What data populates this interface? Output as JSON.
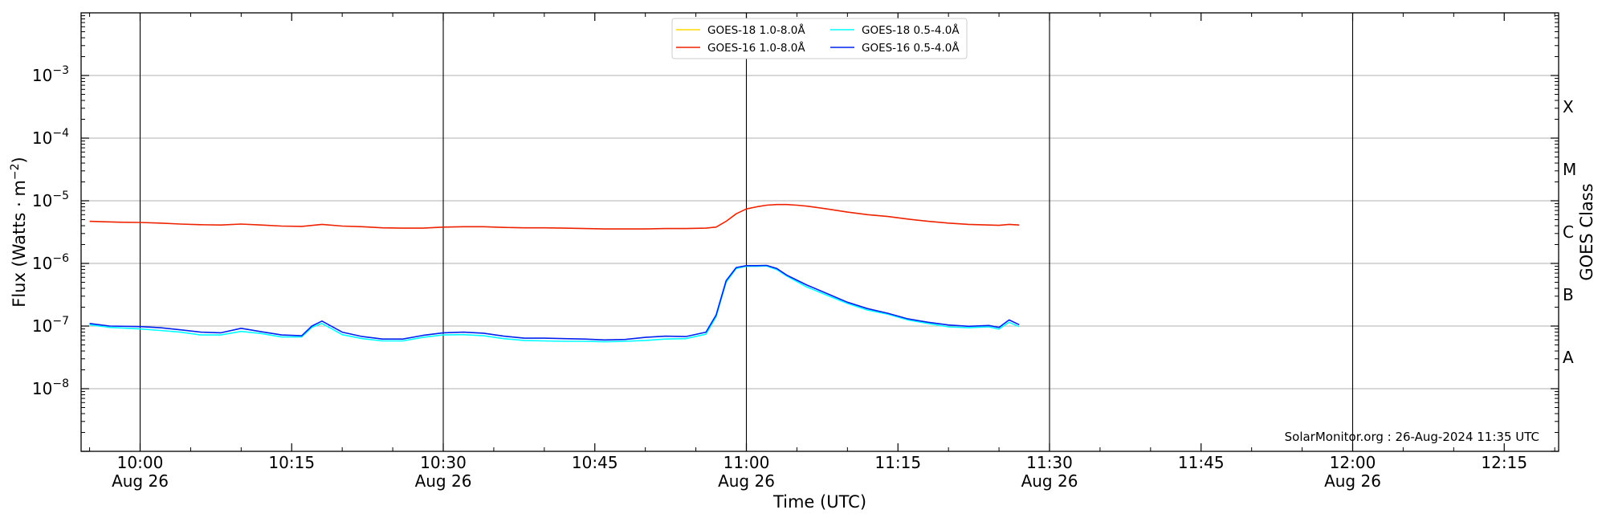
{
  "chart_data": {
    "type": "line",
    "xlabel": "Time (UTC)",
    "ylabel": "Flux (Watts · m",
    "ylabel_exponent": "−2",
    "ylabel_close": ")",
    "right_axis_label": "GOES Class",
    "yscale": "log",
    "ylim": [
      1e-09,
      0.01
    ],
    "xlim": [
      "2024-08-26 09:55",
      "2024-08-26 12:20"
    ],
    "grid": "horizontal at decades, vertical at half-hours",
    "legend_position": "top-center",
    "x_ticks": [
      {
        "t": "10:00",
        "label": "10:00",
        "sublabel": "Aug 26"
      },
      {
        "t": "10:15",
        "label": "10:15",
        "sublabel": ""
      },
      {
        "t": "10:30",
        "label": "10:30",
        "sublabel": "Aug 26"
      },
      {
        "t": "10:45",
        "label": "10:45",
        "sublabel": ""
      },
      {
        "t": "11:00",
        "label": "11:00",
        "sublabel": "Aug 26"
      },
      {
        "t": "11:15",
        "label": "11:15",
        "sublabel": ""
      },
      {
        "t": "11:30",
        "label": "11:30",
        "sublabel": "Aug 26"
      },
      {
        "t": "11:45",
        "label": "11:45",
        "sublabel": ""
      },
      {
        "t": "12:00",
        "label": "12:00",
        "sublabel": "Aug 26"
      },
      {
        "t": "12:15",
        "label": "12:15",
        "sublabel": ""
      }
    ],
    "y_ticks": [
      {
        "exp": -8,
        "label": "10",
        "sup": "−8"
      },
      {
        "exp": -7,
        "label": "10",
        "sup": "−7"
      },
      {
        "exp": -6,
        "label": "10",
        "sup": "−6"
      },
      {
        "exp": -5,
        "label": "10",
        "sup": "−5"
      },
      {
        "exp": -4,
        "label": "10",
        "sup": "−4"
      },
      {
        "exp": -3,
        "label": "10",
        "sup": "−3"
      }
    ],
    "goes_classes": [
      {
        "label": "A",
        "exp_mid": -7.5
      },
      {
        "label": "B",
        "exp_mid": -6.5
      },
      {
        "label": "C",
        "exp_mid": -5.5
      },
      {
        "label": "M",
        "exp_mid": -4.5
      },
      {
        "label": "X",
        "exp_mid": -3.5
      }
    ],
    "series": [
      {
        "name": "GOES-18 1.0-8.0Å",
        "color": "#ffd700",
        "x": [],
        "y": []
      },
      {
        "name": "GOES-18 0.5-4.0Å",
        "color": "#00ffff",
        "x": [
          "09:55",
          "09:57",
          "10:00",
          "10:02",
          "10:04",
          "10:06",
          "10:08",
          "10:10",
          "10:12",
          "10:14",
          "10:16",
          "10:17",
          "10:18",
          "10:19",
          "10:20",
          "10:22",
          "10:24",
          "10:26",
          "10:28",
          "10:30",
          "10:32",
          "10:34",
          "10:36",
          "10:38",
          "10:40",
          "10:42",
          "10:44",
          "10:46",
          "10:48",
          "10:50",
          "10:52",
          "10:54",
          "10:56",
          "10:57",
          "10:58",
          "10:59",
          "11:00",
          "11:01",
          "11:02",
          "11:03",
          "11:04",
          "11:06",
          "11:08",
          "11:10",
          "11:12",
          "11:14",
          "11:16",
          "11:18",
          "11:20",
          "11:22",
          "11:24",
          "11:25",
          "11:26",
          "11:27"
        ],
        "y": [
          1.05e-07,
          9.5e-08,
          9e-08,
          8.5e-08,
          8e-08,
          7.2e-08,
          7.2e-08,
          8.2e-08,
          7.6e-08,
          6.7e-08,
          6.7e-08,
          9.5e-08,
          1.1e-07,
          9e-08,
          7.3e-08,
          6.3e-08,
          5.8e-08,
          5.8e-08,
          6.6e-08,
          7.2e-08,
          7.3e-08,
          7e-08,
          6.3e-08,
          5.9e-08,
          5.8e-08,
          5.7e-08,
          5.7e-08,
          5.6e-08,
          5.7e-08,
          5.9e-08,
          6.2e-08,
          6.3e-08,
          7.4e-08,
          1.4e-07,
          5e-07,
          8.3e-07,
          9e-07,
          9e-07,
          9.1e-07,
          8e-07,
          6.3e-07,
          4.2e-07,
          3.1e-07,
          2.3e-07,
          1.8e-07,
          1.55e-07,
          1.25e-07,
          1.1e-07,
          9.7e-08,
          9.4e-08,
          9.7e-08,
          8.9e-08,
          1.15e-07,
          9.8e-08
        ]
      },
      {
        "name": "GOES-16 1.0-8.0Å",
        "color": "#ee2200",
        "x": [
          "09:55",
          "09:58",
          "10:00",
          "10:02",
          "10:04",
          "10:06",
          "10:08",
          "10:10",
          "10:12",
          "10:14",
          "10:16",
          "10:18",
          "10:20",
          "10:22",
          "10:24",
          "10:26",
          "10:28",
          "10:30",
          "10:32",
          "10:34",
          "10:36",
          "10:38",
          "10:40",
          "10:42",
          "10:44",
          "10:46",
          "10:48",
          "10:50",
          "10:52",
          "10:54",
          "10:56",
          "10:57",
          "10:58",
          "10:59",
          "11:00",
          "11:01",
          "11:02",
          "11:03",
          "11:04",
          "11:05",
          "11:06",
          "11:08",
          "11:10",
          "11:12",
          "11:14",
          "11:16",
          "11:18",
          "11:20",
          "11:22",
          "11:24",
          "11:25",
          "11:26",
          "11:27"
        ],
        "y": [
          4.7e-06,
          4.55e-06,
          4.5e-06,
          4.4e-06,
          4.25e-06,
          4.15e-06,
          4.1e-06,
          4.25e-06,
          4.1e-06,
          3.95e-06,
          3.9e-06,
          4.2e-06,
          3.95e-06,
          3.85e-06,
          3.7e-06,
          3.65e-06,
          3.65e-06,
          3.8e-06,
          3.85e-06,
          3.85e-06,
          3.75e-06,
          3.7e-06,
          3.7e-06,
          3.65e-06,
          3.6e-06,
          3.55e-06,
          3.55e-06,
          3.55e-06,
          3.6e-06,
          3.6e-06,
          3.65e-06,
          3.8e-06,
          4.7e-06,
          6.2e-06,
          7.4e-06,
          8e-06,
          8.5e-06,
          8.7e-06,
          8.7e-06,
          8.5e-06,
          8.2e-06,
          7.4e-06,
          6.6e-06,
          6e-06,
          5.6e-06,
          5.1e-06,
          4.7e-06,
          4.4e-06,
          4.2e-06,
          4.1e-06,
          4.05e-06,
          4.2e-06,
          4.1e-06
        ]
      },
      {
        "name": "GOES-16 0.5-4.0Å",
        "color": "#0022ee",
        "x": [
          "09:55",
          "09:57",
          "10:00",
          "10:02",
          "10:04",
          "10:06",
          "10:08",
          "10:10",
          "10:12",
          "10:14",
          "10:16",
          "10:17",
          "10:18",
          "10:19",
          "10:20",
          "10:22",
          "10:24",
          "10:26",
          "10:28",
          "10:30",
          "10:32",
          "10:34",
          "10:36",
          "10:38",
          "10:40",
          "10:42",
          "10:44",
          "10:46",
          "10:48",
          "10:50",
          "10:52",
          "10:54",
          "10:56",
          "10:57",
          "10:58",
          "10:59",
          "11:00",
          "11:01",
          "11:02",
          "11:03",
          "11:04",
          "11:06",
          "11:08",
          "11:10",
          "11:12",
          "11:14",
          "11:16",
          "11:18",
          "11:20",
          "11:22",
          "11:24",
          "11:25",
          "11:26",
          "11:27"
        ],
        "y": [
          1.1e-07,
          1e-07,
          9.8e-08,
          9.4e-08,
          8.7e-08,
          8e-08,
          7.8e-08,
          9.2e-08,
          8.1e-08,
          7.2e-08,
          7e-08,
          1e-07,
          1.2e-07,
          9.8e-08,
          8e-08,
          6.8e-08,
          6.2e-08,
          6.2e-08,
          7.1e-08,
          7.8e-08,
          8e-08,
          7.7e-08,
          6.9e-08,
          6.4e-08,
          6.4e-08,
          6.3e-08,
          6.2e-08,
          6e-08,
          6.1e-08,
          6.6e-08,
          6.9e-08,
          6.8e-08,
          8e-08,
          1.5e-07,
          5.3e-07,
          8.6e-07,
          9.2e-07,
          9.2e-07,
          9.3e-07,
          8.3e-07,
          6.5e-07,
          4.5e-07,
          3.3e-07,
          2.4e-07,
          1.9e-07,
          1.6e-07,
          1.3e-07,
          1.15e-07,
          1.04e-07,
          9.9e-08,
          1.02e-07,
          9.5e-08,
          1.25e-07,
          1.05e-07
        ]
      }
    ],
    "annotation": "SolarMonitor.org : 26-Aug-2024 11:35 UTC"
  }
}
